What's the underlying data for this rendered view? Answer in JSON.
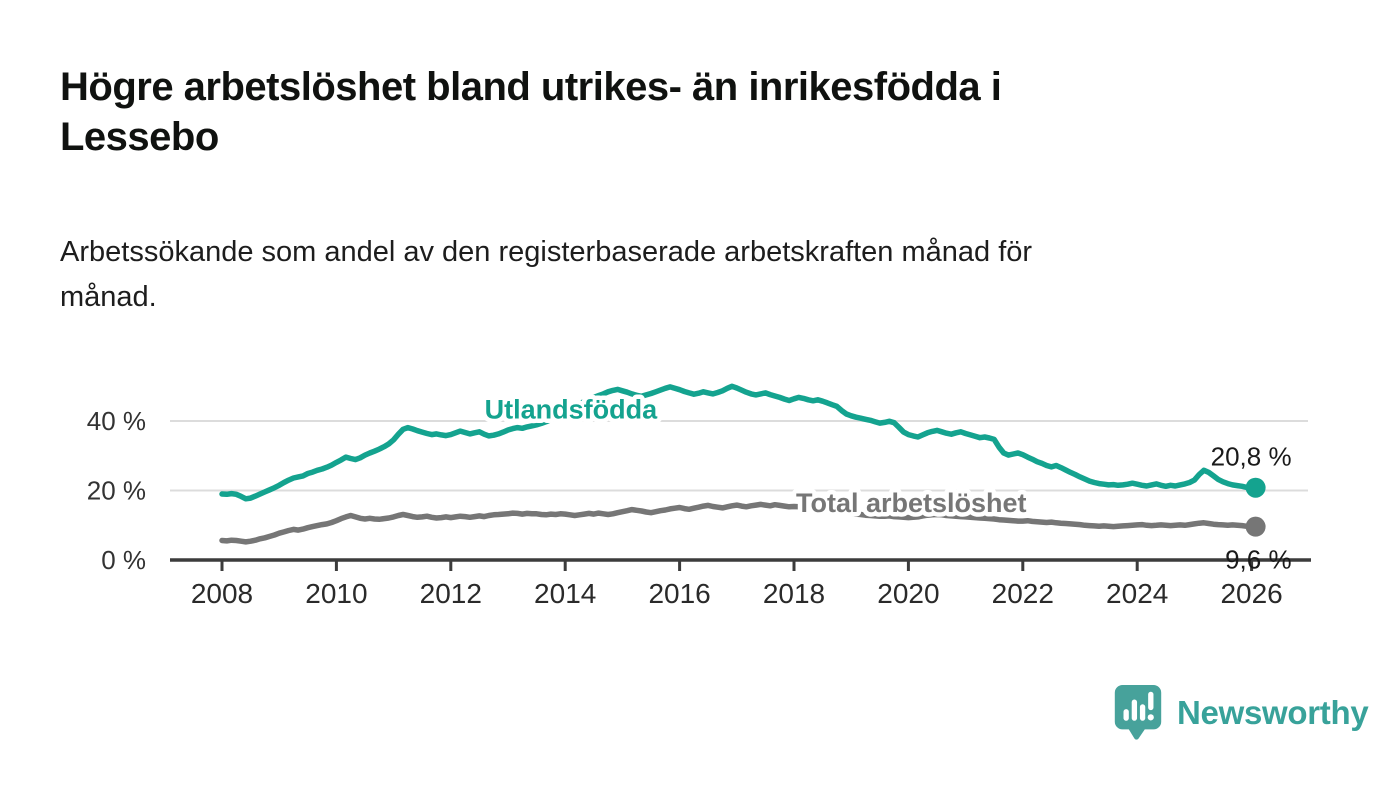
{
  "header": {
    "title_lines": [
      "Högre arbetslöshet bland utrikes- än inrikesfödda i",
      "Lessebo"
    ],
    "subtitle_lines": [
      "Arbetssökande som andel av den registerbaserade arbetskraften månad för",
      "månad."
    ]
  },
  "colors": {
    "foreign_born": "#14a38f",
    "total": "#767676",
    "grid": "#dcdcdc",
    "axis": "#3c3c3c",
    "tick_label": "#2a2a2a",
    "value_label": "#1a1a1a",
    "logo_teal": "#47a29b",
    "logo_text_teal": "#38a29a"
  },
  "chart_data": {
    "type": "line",
    "title": "Högre arbetslöshet bland utrikes- än inrikesfödda i Lessebo",
    "subtitle": "Arbetssökande som andel av den registerbaserade arbetskraften månad för månad.",
    "x_axis": {
      "tick_years": [
        2008,
        2010,
        2012,
        2014,
        2016,
        2018,
        2020,
        2022,
        2024,
        2026
      ]
    },
    "y_axis": {
      "ticks": [
        {
          "value": 0,
          "label": "0 %"
        },
        {
          "value": 20,
          "label": "20 %"
        },
        {
          "value": 40,
          "label": "40 %"
        }
      ],
      "gridline_values": [
        20,
        40
      ],
      "range": [
        0,
        57
      ]
    },
    "series": [
      {
        "name": "Utlandsfödda",
        "color": "#14a38f",
        "start_year": 2008,
        "points_per_year": 12,
        "end_value_label": "20,8 %",
        "end_label_side": "above",
        "name_label_at": {
          "year": 2014.1,
          "value": 42.7
        },
        "values": [
          19.0,
          18.9,
          19.1,
          18.9,
          18.3,
          17.6,
          17.8,
          18.4,
          19.0,
          19.6,
          20.2,
          20.8,
          21.5,
          22.3,
          23.0,
          23.6,
          23.9,
          24.2,
          24.9,
          25.3,
          25.8,
          26.2,
          26.7,
          27.3,
          28.1,
          28.8,
          29.6,
          29.2,
          28.9,
          29.4,
          30.2,
          30.8,
          31.3,
          31.9,
          32.6,
          33.4,
          34.6,
          36.2,
          37.6,
          38.1,
          37.7,
          37.2,
          36.8,
          36.4,
          36.1,
          36.3,
          36.0,
          35.8,
          36.1,
          36.6,
          37.1,
          36.7,
          36.3,
          36.6,
          36.9,
          36.2,
          35.7,
          35.9,
          36.3,
          36.8,
          37.4,
          37.8,
          38.1,
          37.9,
          38.3,
          38.6,
          38.9,
          39.3,
          39.8,
          40.4,
          41.1,
          41.9,
          42.8,
          43.6,
          44.3,
          44.9,
          45.6,
          46.2,
          46.8,
          47.3,
          47.8,
          48.4,
          48.8,
          49.1,
          48.7,
          48.3,
          47.8,
          47.4,
          47.1,
          47.5,
          47.9,
          48.4,
          48.9,
          49.4,
          49.8,
          49.4,
          49.0,
          48.5,
          48.1,
          47.7,
          48.0,
          48.4,
          48.1,
          47.8,
          48.2,
          48.7,
          49.4,
          50.0,
          49.5,
          48.9,
          48.3,
          47.8,
          47.5,
          47.8,
          48.1,
          47.6,
          47.2,
          46.8,
          46.3,
          45.9,
          46.4,
          46.8,
          46.5,
          46.1,
          45.8,
          46.1,
          45.7,
          45.2,
          44.7,
          44.2,
          43.0,
          42.0,
          41.5,
          41.1,
          40.8,
          40.5,
          40.2,
          39.8,
          39.4,
          39.6,
          39.9,
          39.5,
          38.2,
          36.8,
          36.1,
          35.7,
          35.4,
          36.0,
          36.6,
          37.0,
          37.3,
          36.9,
          36.5,
          36.2,
          36.6,
          36.9,
          36.4,
          36.0,
          35.6,
          35.2,
          35.4,
          35.1,
          34.7,
          32.5,
          30.8,
          30.2,
          30.5,
          30.8,
          30.3,
          29.6,
          29.0,
          28.3,
          27.8,
          27.2,
          26.8,
          27.2,
          26.6,
          25.9,
          25.2,
          24.6,
          23.9,
          23.3,
          22.7,
          22.3,
          22.0,
          21.8,
          21.6,
          21.7,
          21.5,
          21.6,
          21.8,
          22.1,
          21.8,
          21.5,
          21.3,
          21.6,
          21.9,
          21.5,
          21.2,
          21.5,
          21.3,
          21.6,
          21.9,
          22.3,
          23.0,
          24.6,
          25.8,
          25.2,
          24.2,
          23.2,
          22.5,
          22.0,
          21.6,
          21.4,
          21.2,
          20.9,
          20.8
        ]
      },
      {
        "name": "Total arbetslöshet",
        "color": "#767676",
        "start_year": 2008,
        "points_per_year": 12,
        "end_value_label": "9,6 %",
        "end_label_side": "below",
        "name_label_at": {
          "year": 2020.05,
          "value": 15.9
        },
        "values": [
          5.6,
          5.5,
          5.7,
          5.6,
          5.4,
          5.2,
          5.4,
          5.7,
          6.1,
          6.4,
          6.8,
          7.2,
          7.7,
          8.1,
          8.5,
          8.8,
          8.6,
          8.9,
          9.3,
          9.6,
          9.9,
          10.2,
          10.4,
          10.8,
          11.3,
          11.9,
          12.4,
          12.8,
          12.4,
          12.0,
          11.8,
          12.0,
          11.8,
          11.7,
          11.9,
          12.1,
          12.4,
          12.8,
          13.1,
          12.8,
          12.5,
          12.3,
          12.4,
          12.6,
          12.3,
          12.1,
          12.2,
          12.4,
          12.2,
          12.4,
          12.6,
          12.5,
          12.3,
          12.5,
          12.7,
          12.5,
          12.8,
          13.0,
          13.1,
          13.2,
          13.3,
          13.5,
          13.4,
          13.2,
          13.4,
          13.3,
          13.3,
          13.1,
          13.0,
          13.2,
          13.1,
          13.3,
          13.2,
          13.0,
          12.8,
          13.0,
          13.2,
          13.4,
          13.2,
          13.5,
          13.3,
          13.1,
          13.3,
          13.6,
          13.9,
          14.2,
          14.5,
          14.3,
          14.1,
          13.8,
          13.6,
          13.9,
          14.2,
          14.4,
          14.7,
          14.9,
          15.1,
          14.8,
          14.6,
          14.9,
          15.2,
          15.5,
          15.7,
          15.4,
          15.2,
          15.0,
          15.3,
          15.6,
          15.8,
          15.5,
          15.3,
          15.6,
          15.8,
          16.0,
          15.8,
          15.6,
          15.9,
          15.7,
          15.5,
          15.3,
          15.4,
          15.3,
          15.1,
          15.0,
          14.9,
          14.7,
          14.6,
          14.4,
          14.2,
          14.0,
          13.8,
          13.6,
          13.4,
          13.2,
          13.1,
          12.9,
          12.8,
          12.7,
          12.6,
          12.6,
          12.7,
          12.5,
          12.4,
          12.3,
          12.2,
          12.3,
          12.4,
          12.7,
          12.9,
          13.0,
          13.1,
          13.0,
          12.8,
          12.7,
          12.6,
          12.5,
          12.4,
          12.3,
          12.2,
          12.1,
          12.0,
          11.9,
          11.8,
          11.6,
          11.5,
          11.4,
          11.3,
          11.2,
          11.2,
          11.3,
          11.1,
          11.0,
          10.9,
          10.8,
          10.9,
          10.7,
          10.6,
          10.5,
          10.4,
          10.3,
          10.2,
          10.0,
          9.9,
          9.8,
          9.7,
          9.8,
          9.7,
          9.6,
          9.7,
          9.8,
          9.9,
          10.0,
          10.1,
          10.2,
          10.0,
          9.9,
          10.0,
          10.1,
          10.0,
          9.9,
          10.0,
          10.1,
          10.0,
          10.2,
          10.4,
          10.6,
          10.7,
          10.5,
          10.3,
          10.2,
          10.1,
          10.0,
          10.1,
          10.0,
          9.9,
          9.7,
          9.6
        ]
      }
    ]
  },
  "footer": {
    "brand": "Newsworthy"
  }
}
